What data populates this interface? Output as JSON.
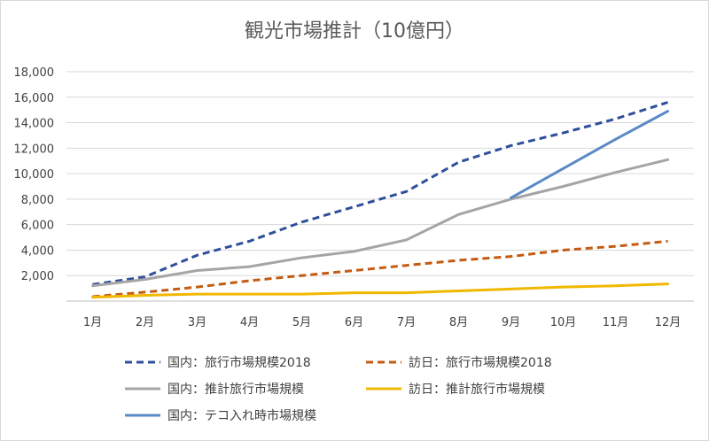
{
  "chart_data": {
    "type": "line",
    "title": "観光市場推計（10億円）",
    "categories": [
      "1月",
      "2月",
      "3月",
      "4月",
      "5月",
      "6月",
      "7月",
      "8月",
      "9月",
      "10月",
      "11月",
      "12月"
    ],
    "ylim": [
      0,
      18000
    ],
    "yticks": [
      "2,000",
      "4,000",
      "6,000",
      "8,000",
      "10,000",
      "12,000",
      "14,000",
      "16,000",
      "18,000"
    ],
    "ytick_values": [
      2000,
      4000,
      6000,
      8000,
      10000,
      12000,
      14000,
      16000,
      18000
    ],
    "grid": true,
    "legend_position": "bottom",
    "series": [
      {
        "name": "国内：旅行市場規模2018",
        "color": "#2f4f9c",
        "dash": true,
        "values": [
          1300,
          1900,
          3600,
          4700,
          6200,
          7400,
          8600,
          10900,
          12200,
          13200,
          14300,
          15600
        ]
      },
      {
        "name": "訪日：旅行市場規模2018",
        "color": "#c55a11",
        "dash": true,
        "values": [
          350,
          700,
          1100,
          1600,
          2000,
          2400,
          2800,
          3200,
          3500,
          4000,
          4300,
          4700
        ]
      },
      {
        "name": "国内：推計旅行市場規模",
        "color": "#a5a5a5",
        "dash": false,
        "values": [
          1200,
          1700,
          2400,
          2700,
          3400,
          3900,
          4800,
          6800,
          8000,
          9000,
          10100,
          11100
        ]
      },
      {
        "name": "訪日：推計旅行市場規模",
        "color": "#f0b800",
        "dash": false,
        "values": [
          300,
          450,
          550,
          550,
          550,
          650,
          650,
          800,
          950,
          1100,
          1200,
          1350
        ]
      },
      {
        "name": "国内：テコ入れ時市場規模",
        "color": "#5b8ac6",
        "dash": false,
        "values": [
          null,
          null,
          null,
          null,
          null,
          null,
          null,
          null,
          8100,
          10400,
          12700,
          14900
        ]
      }
    ]
  }
}
